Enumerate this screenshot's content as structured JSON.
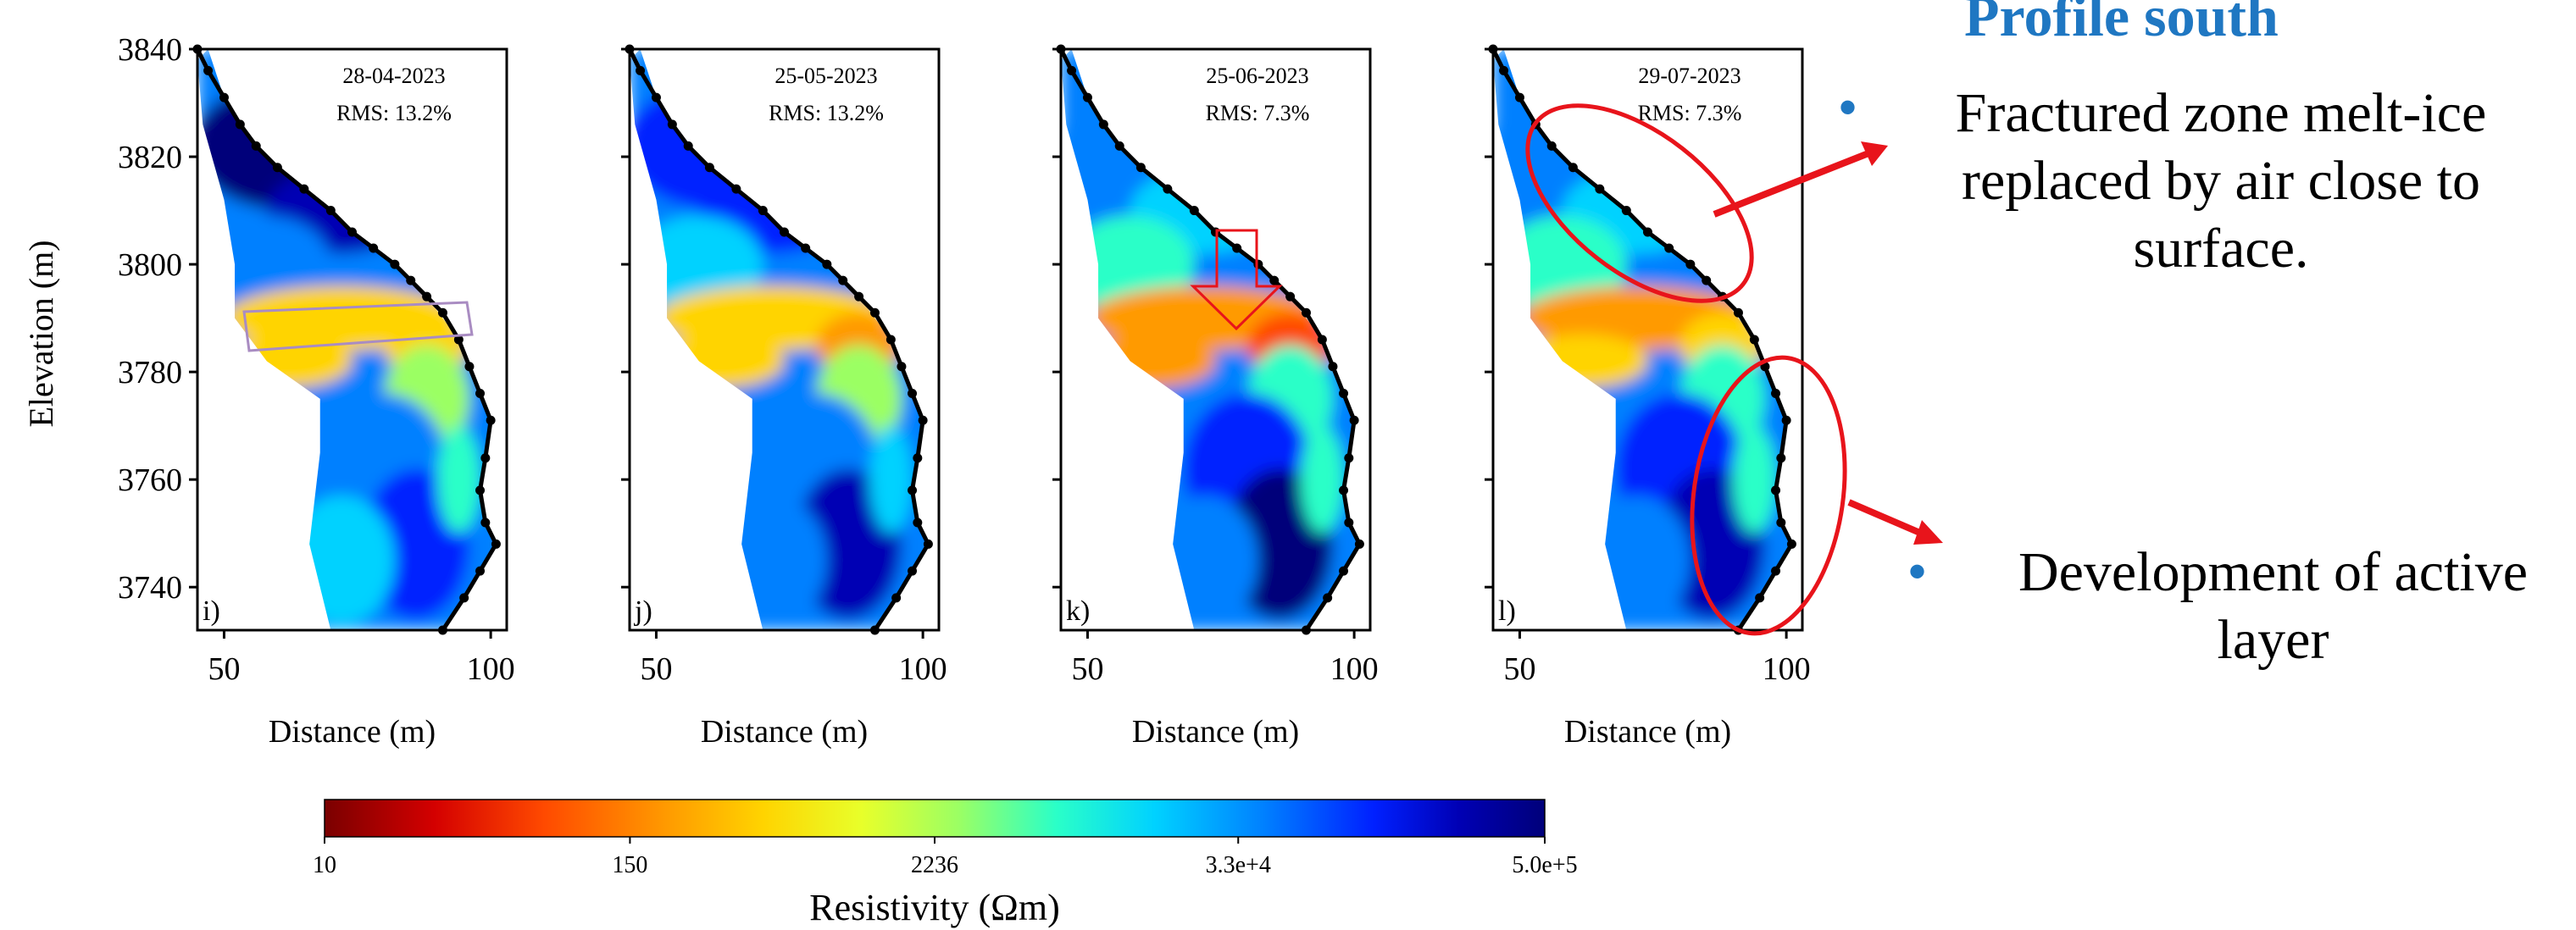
{
  "heading": "Profile south",
  "bullets": [
    {
      "text": "Fractured zone melt-ice replaced by air close to surface."
    },
    {
      "text": "Development of active layer"
    }
  ],
  "colors": {
    "accent": "#1f77c2",
    "annotation_red": "#e8141b",
    "outline": "#000000",
    "box_violet": "#a98cc2",
    "colormap": [
      "#7a0000",
      "#d40000",
      "#ff4a00",
      "#ff9a00",
      "#ffd400",
      "#e8ff2a",
      "#9bff64",
      "#2affc8",
      "#00d2ff",
      "#0080ff",
      "#0020ff",
      "#0000b4",
      "#00007a"
    ]
  },
  "chart_data": {
    "type": "heatmap",
    "shared": {
      "xlabel": "Distance (m)",
      "ylabel": "Elevation (m)",
      "xlim": [
        45,
        103
      ],
      "ylim": [
        3732,
        3840
      ],
      "xticks": [
        "50",
        "100"
      ],
      "yticks": [
        "3840",
        "3820",
        "3800",
        "3780",
        "3760",
        "3740"
      ]
    },
    "panels": [
      {
        "label": "i)",
        "date": "28-04-2023",
        "rms": "RMS: 13.2%"
      },
      {
        "label": "j)",
        "date": "25-05-2023",
        "rms": "RMS: 13.2%"
      },
      {
        "label": "k)",
        "date": "25-06-2023",
        "rms": "RMS: 7.3%"
      },
      {
        "label": "l)",
        "date": "29-07-2023",
        "rms": "RMS: 7.3%"
      }
    ],
    "surface_profile": [
      [
        45,
        3840
      ],
      [
        47,
        3836
      ],
      [
        50,
        3831
      ],
      [
        53,
        3826
      ],
      [
        56,
        3822
      ],
      [
        60,
        3818
      ],
      [
        65,
        3814
      ],
      [
        70,
        3810
      ],
      [
        74,
        3806
      ],
      [
        78,
        3803
      ],
      [
        82,
        3800
      ],
      [
        85,
        3797
      ],
      [
        88,
        3794
      ],
      [
        91,
        3791
      ],
      [
        94,
        3786
      ],
      [
        96,
        3781
      ],
      [
        98,
        3776
      ],
      [
        100,
        3771
      ],
      [
        99,
        3764
      ],
      [
        98,
        3758
      ],
      [
        99,
        3752
      ],
      [
        101,
        3748
      ],
      [
        98,
        3743
      ],
      [
        95,
        3738
      ],
      [
        91,
        3732
      ]
    ],
    "colorbar": {
      "label": "Resistivity (Ωm)",
      "scale": "log",
      "range": [
        10,
        500000
      ],
      "ticks": [
        "10",
        "150",
        "2236",
        "3.3e+4",
        "5.0e+5"
      ]
    }
  }
}
